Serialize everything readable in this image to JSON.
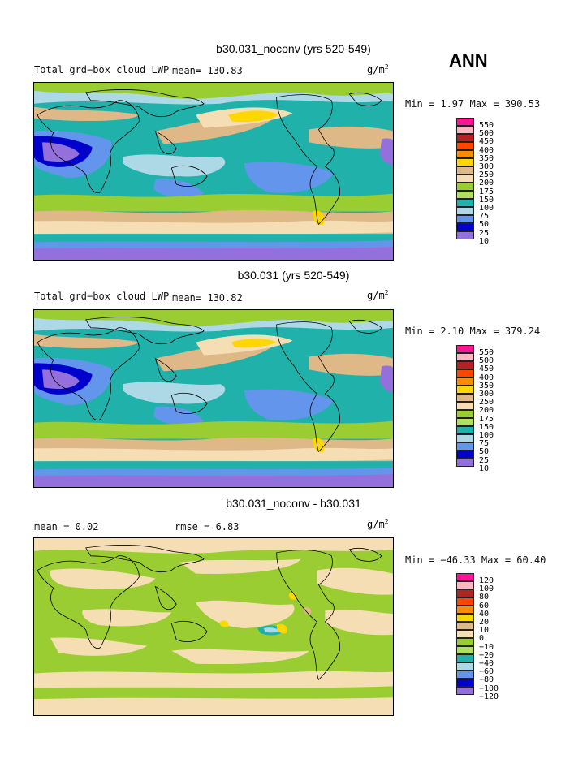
{
  "season": "ANN",
  "panels": [
    {
      "title": "b30.031_noconv (yrs 520-549)",
      "label": "Total grd−box cloud LWP",
      "stat": "mean= 130.83",
      "unit": "g/m",
      "unit_exp": "2",
      "minmax": "Min =   1.97 Max = 390.53",
      "levels": [
        "550",
        "500",
        "450",
        "400",
        "350",
        "300",
        "250",
        "200",
        "175",
        "150",
        "100",
        "75",
        "50",
        "25",
        "10"
      ],
      "colors": [
        "#ff1493",
        "#ffb6c1",
        "#b22222",
        "#ff4500",
        "#ff8c00",
        "#ffd700",
        "#deb887",
        "#f5deb3",
        "#9acd32",
        "#b0e060",
        "#20b2aa",
        "#add8e6",
        "#6495ed",
        "#0000cd",
        "#9370db"
      ]
    },
    {
      "title": "b30.031 (yrs 520-549)",
      "label": "Total grd−box cloud LWP",
      "stat": "mean= 130.82",
      "unit": "g/m",
      "unit_exp": "2",
      "minmax": "Min =   2.10 Max = 379.24",
      "levels": [
        "550",
        "500",
        "450",
        "400",
        "350",
        "300",
        "250",
        "200",
        "175",
        "150",
        "100",
        "75",
        "50",
        "25",
        "10"
      ],
      "colors": [
        "#ff1493",
        "#ffb6c1",
        "#b22222",
        "#ff4500",
        "#ff8c00",
        "#ffd700",
        "#deb887",
        "#f5deb3",
        "#9acd32",
        "#b0e060",
        "#20b2aa",
        "#add8e6",
        "#6495ed",
        "#0000cd",
        "#9370db"
      ]
    },
    {
      "title": "b30.031_noconv - b30.031",
      "label": "mean =    0.02",
      "stat": "rmse =    6.83",
      "unit": "g/m",
      "unit_exp": "2",
      "minmax": "Min = −46.33 Max =  60.40",
      "levels": [
        "120",
        "100",
        "80",
        "60",
        "40",
        "20",
        "10",
        "0",
        "−10",
        "−20",
        "−40",
        "−60",
        "−80",
        "−100",
        "−120"
      ],
      "colors": [
        "#ff1493",
        "#ffb6c1",
        "#b22222",
        "#ff4500",
        "#ff8c00",
        "#ffd700",
        "#deb887",
        "#f5deb3",
        "#9acd32",
        "#b0e060",
        "#20b2aa",
        "#add8e6",
        "#6495ed",
        "#0000cd",
        "#9370db"
      ]
    }
  ],
  "chart_data": [
    {
      "type": "heatmap",
      "title": "b30.031_noconv (yrs 520-549)",
      "variable": "Total grd−box cloud LWP",
      "units": "g/m^2",
      "mean": 130.83,
      "min": 1.97,
      "max": 390.53,
      "contour_levels": [
        10,
        25,
        50,
        75,
        100,
        150,
        175,
        200,
        250,
        300,
        350,
        400,
        450,
        500,
        550
      ]
    },
    {
      "type": "heatmap",
      "title": "b30.031 (yrs 520-549)",
      "variable": "Total grd−box cloud LWP",
      "units": "g/m^2",
      "mean": 130.82,
      "min": 2.1,
      "max": 379.24,
      "contour_levels": [
        10,
        25,
        50,
        75,
        100,
        150,
        175,
        200,
        250,
        300,
        350,
        400,
        450,
        500,
        550
      ]
    },
    {
      "type": "heatmap",
      "title": "b30.031_noconv - b30.031",
      "units": "g/m^2",
      "mean": 0.02,
      "rmse": 6.83,
      "min": -46.33,
      "max": 60.4,
      "contour_levels": [
        -120,
        -100,
        -80,
        -60,
        -40,
        -20,
        -10,
        0,
        10,
        20,
        40,
        60,
        80,
        100,
        120
      ]
    }
  ]
}
